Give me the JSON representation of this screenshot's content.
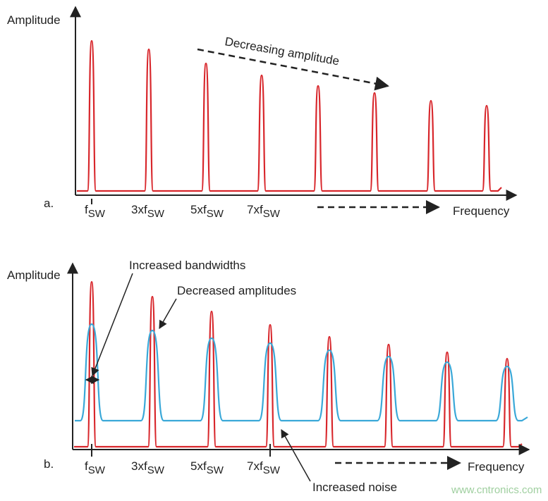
{
  "panel_a": {
    "label": "a.",
    "y_axis": "Amplitude",
    "x_axis": "Frequency",
    "annotation": "Decreasing amplitude",
    "ticks": [
      {
        "main": "f",
        "sub": "SW"
      },
      {
        "main": "3xf",
        "sub": "SW"
      },
      {
        "main": "5xf",
        "sub": "SW"
      },
      {
        "main": "7xf",
        "sub": "SW"
      }
    ]
  },
  "panel_b": {
    "label": "b.",
    "y_axis": "Amplitude",
    "x_axis": "Frequency",
    "annotations": [
      "Increased bandwidths",
      "Decreased amplitudes",
      "Increased noise"
    ],
    "ticks": [
      {
        "main": "f",
        "sub": "SW"
      },
      {
        "main": "3xf",
        "sub": "SW"
      },
      {
        "main": "5xf",
        "sub": "SW"
      },
      {
        "main": "7xf",
        "sub": "SW"
      }
    ]
  },
  "watermark": "www.cntronics.com"
}
